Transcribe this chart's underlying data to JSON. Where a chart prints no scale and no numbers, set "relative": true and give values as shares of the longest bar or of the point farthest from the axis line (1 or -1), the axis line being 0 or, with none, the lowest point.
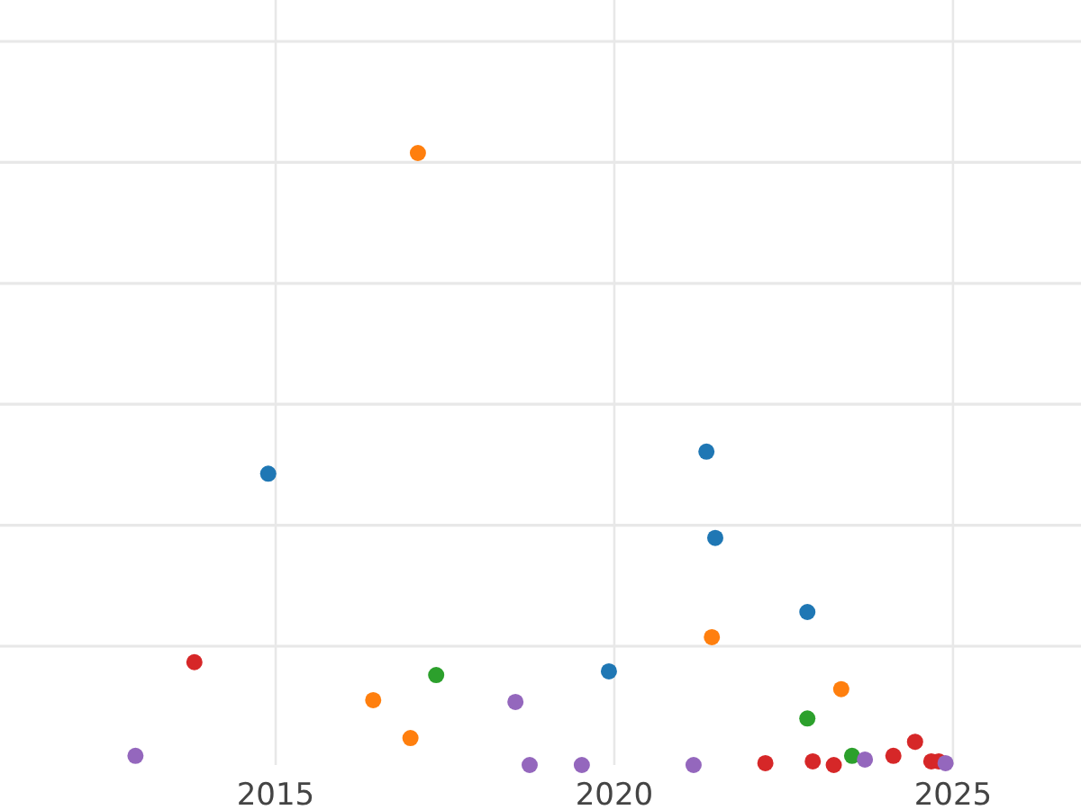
{
  "chart_data": {
    "type": "scatter",
    "relative": true,
    "xlim": [
      2010.93,
      2026.89
    ],
    "xticks": [
      2015,
      2020,
      2025
    ],
    "grid": true,
    "marker": "circle",
    "series": [
      {
        "color": "#1f77b4",
        "x": [
          2014.89,
          2021.36,
          2021.49,
          2022.85,
          2019.92
        ],
        "values": [
          0.476,
          0.512,
          0.371,
          0.25,
          0.153
        ]
      },
      {
        "color": "#ff7f0e",
        "x": [
          2017.1,
          2016.44,
          2016.99,
          2021.44,
          2023.35
        ],
        "values": [
          1,
          0.106,
          0.044,
          0.209,
          0.124
        ]
      },
      {
        "color": "#2ca02c",
        "x": [
          2017.37,
          2022.85,
          2023.51
        ],
        "values": [
          0.147,
          0.076,
          0.015
        ]
      },
      {
        "color": "#d62728",
        "x": [
          2013.8,
          2022.23,
          2022.93,
          2023.24,
          2024.12,
          2024.44,
          2024.68,
          2024.79
        ],
        "values": [
          0.168,
          0.003,
          0.006,
          0,
          0.015,
          0.038,
          0.006,
          0.006
        ]
      },
      {
        "color": "#9467bd",
        "x": [
          2012.93,
          2018.54,
          2018.75,
          2019.52,
          2021.17,
          2023.7,
          2024.89
        ],
        "values": [
          0.015,
          0.103,
          0,
          0,
          0,
          0.009,
          0.003
        ]
      }
    ]
  }
}
